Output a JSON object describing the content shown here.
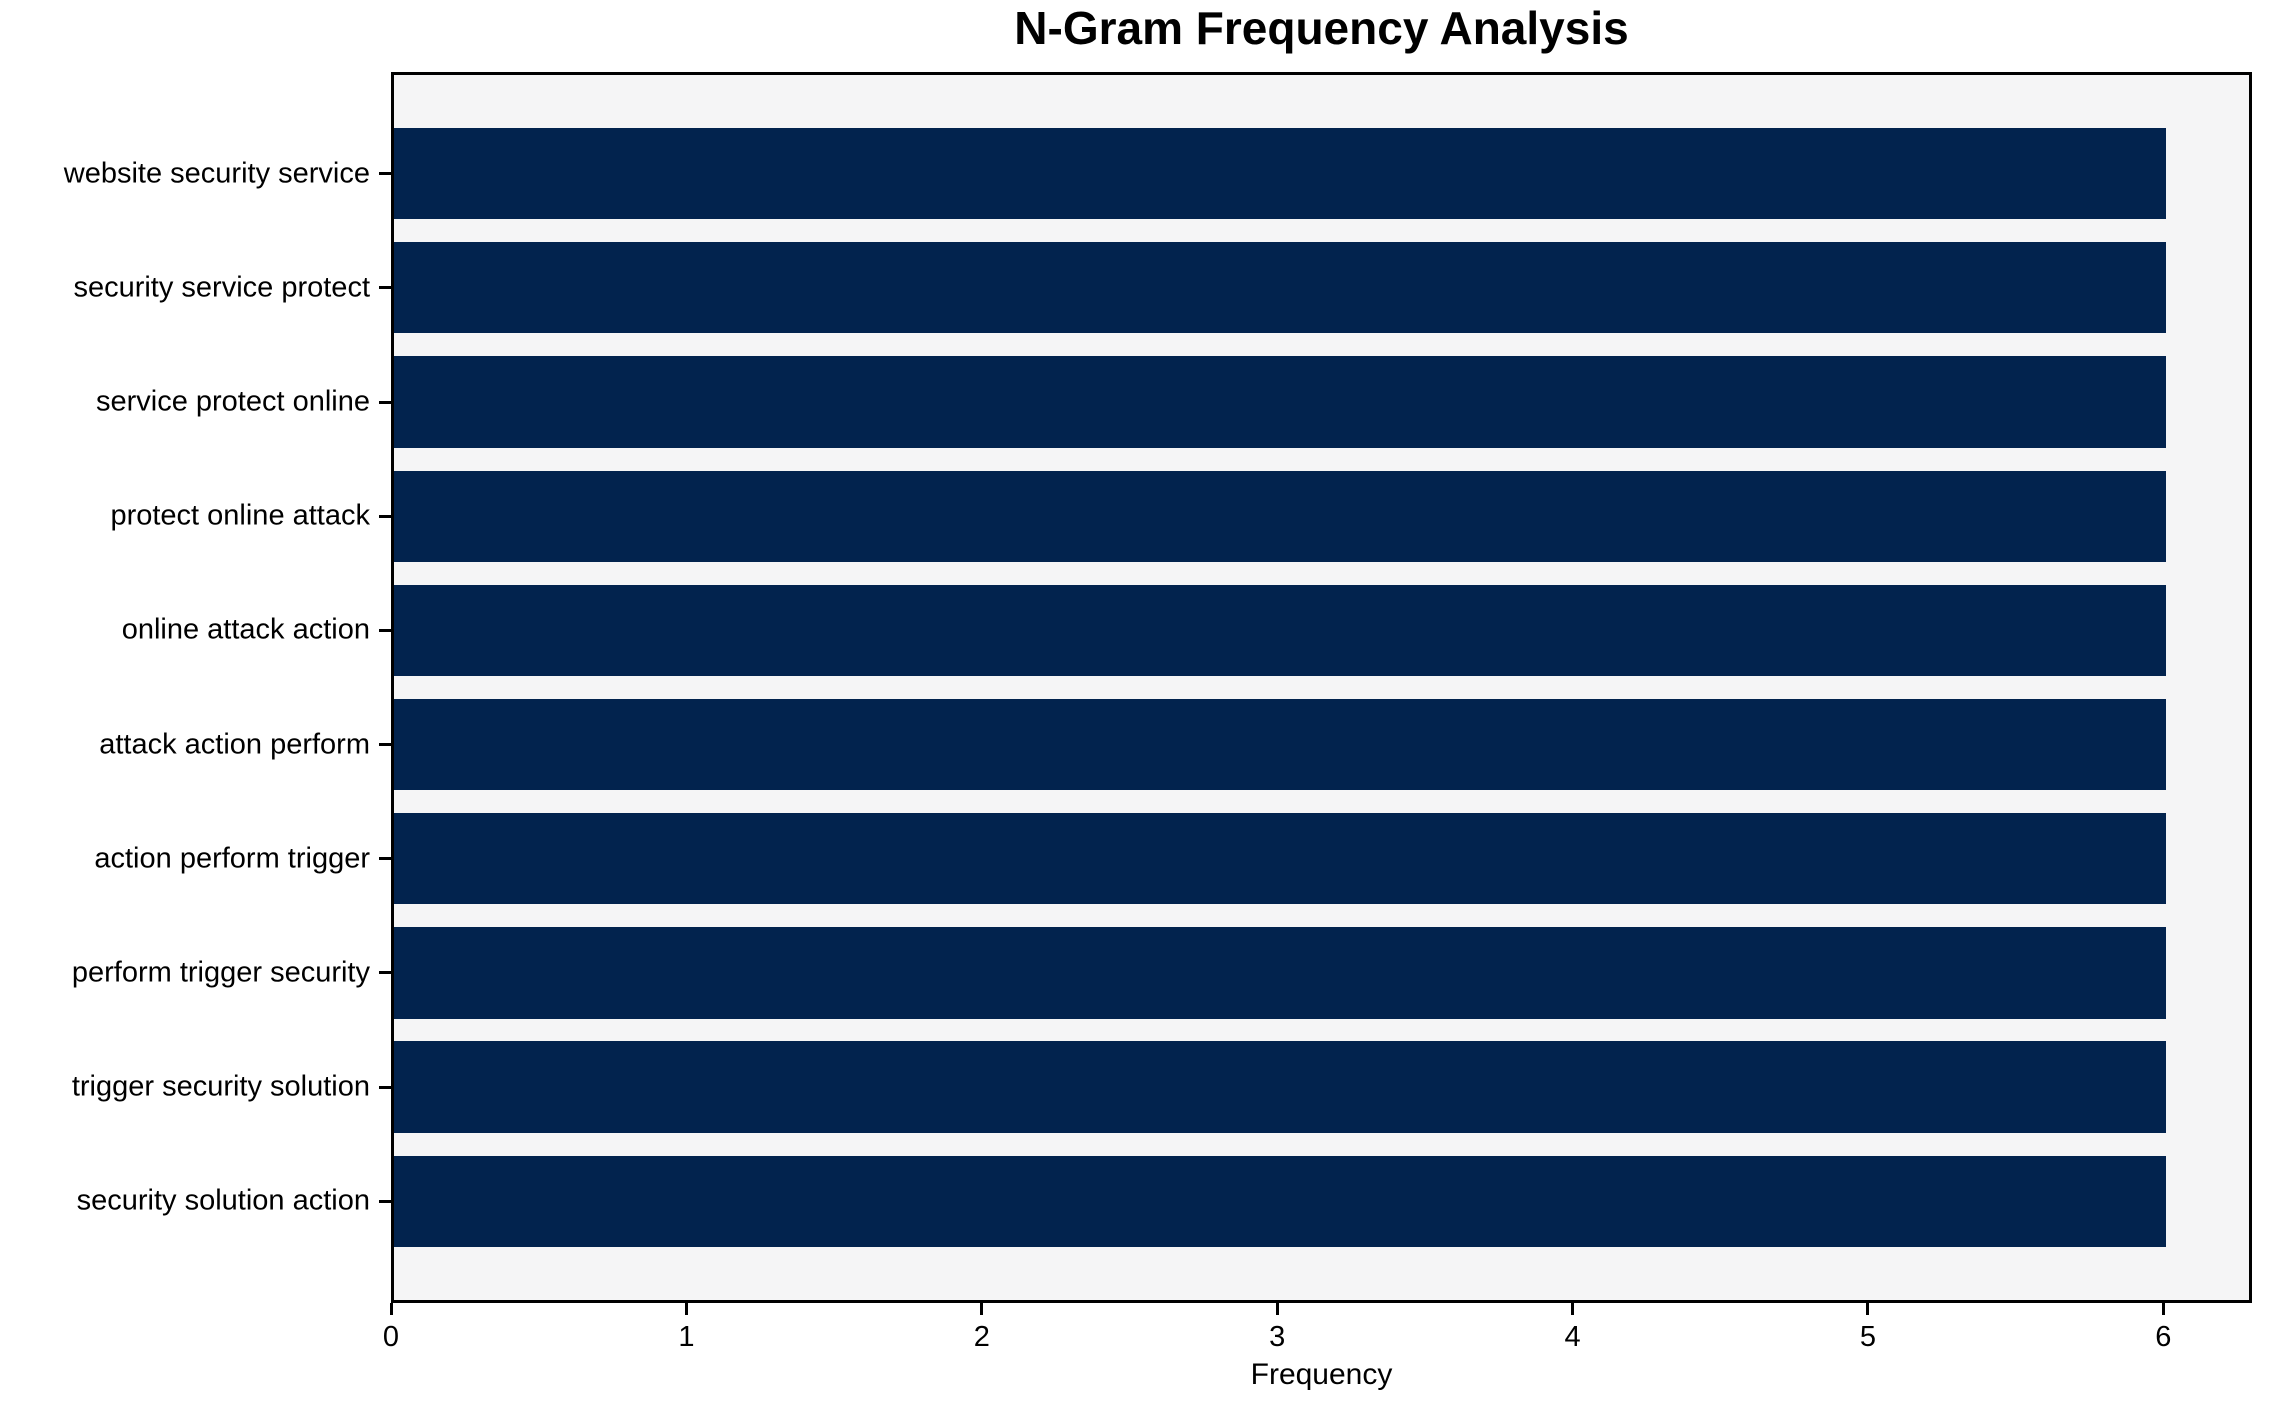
{
  "chart_data": {
    "type": "bar",
    "orientation": "horizontal",
    "title": "N-Gram Frequency Analysis",
    "xlabel": "Frequency",
    "ylabel": "",
    "categories": [
      "website security service",
      "security service protect",
      "service protect online",
      "protect online attack",
      "online attack action",
      "attack action perform",
      "action perform trigger",
      "perform trigger security",
      "trigger security solution",
      "security solution action"
    ],
    "values": [
      6,
      6,
      6,
      6,
      6,
      6,
      6,
      6,
      6,
      6
    ],
    "xlim": [
      0,
      6.3
    ],
    "xticks": [
      0,
      1,
      2,
      3,
      4,
      5,
      6
    ],
    "grid": false,
    "colors": {
      "bar": "#02234e",
      "plot_background": "#f5f5f6",
      "figure_background": "#ffffff",
      "spine": "#000000",
      "text": "#000000"
    }
  }
}
